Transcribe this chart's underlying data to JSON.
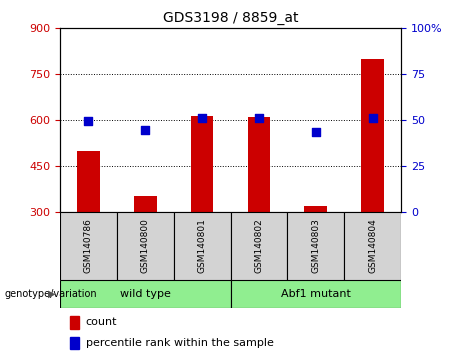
{
  "title": "GDS3198 / 8859_at",
  "samples": [
    "GSM140786",
    "GSM140800",
    "GSM140801",
    "GSM140802",
    "GSM140803",
    "GSM140804"
  ],
  "counts": [
    500,
    352,
    615,
    610,
    320,
    800
  ],
  "percentiles": [
    49.5,
    44.5,
    51.5,
    51.5,
    43.5,
    51.5
  ],
  "ylim_left": [
    300,
    900
  ],
  "ylim_right": [
    0,
    100
  ],
  "yticks_left": [
    300,
    450,
    600,
    750,
    900
  ],
  "yticks_right": [
    0,
    25,
    50,
    75,
    100
  ],
  "bar_color": "#cc0000",
  "dot_color": "#0000cc",
  "bar_width": 0.4,
  "groups": [
    {
      "label": "wild type",
      "start": 0,
      "end": 3,
      "color": "#90ee90"
    },
    {
      "label": "Abf1 mutant",
      "start": 3,
      "end": 6,
      "color": "#90ee90"
    }
  ],
  "group_label_prefix": "genotype/variation",
  "legend_count": "count",
  "legend_percentile": "percentile rank within the sample",
  "gray_cell_color": "#d3d3d3",
  "title_fontsize": 10,
  "tick_fontsize": 8,
  "sample_fontsize": 6.5,
  "group_fontsize": 8,
  "legend_fontsize": 8
}
